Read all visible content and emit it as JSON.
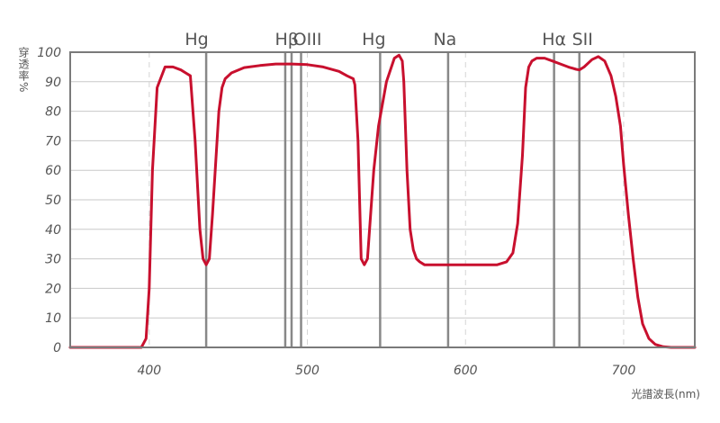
{
  "chart_data": {
    "type": "line",
    "ylabel": "穿透率%",
    "xlabel": "光譜波長(nm)",
    "xlim": [
      350,
      745
    ],
    "ylim": [
      0,
      100
    ],
    "y_ticks": [
      0,
      10,
      20,
      30,
      40,
      50,
      60,
      70,
      80,
      90,
      100
    ],
    "x_ticks": [
      400,
      500,
      600,
      700
    ],
    "grid": true,
    "colors": {
      "curve": "#c8102e",
      "grid": "#c8c8c8",
      "frame": "#7a7a7a",
      "spectral_line": "#888888",
      "text": "#555555"
    },
    "spectral_lines": [
      {
        "label": "Hg",
        "wavelength": 436,
        "text_wavelength": 430
      },
      {
        "label": "Hβ",
        "wavelength": 486,
        "text_wavelength": 487
      },
      {
        "label": "",
        "wavelength": 490,
        "text_wavelength": null
      },
      {
        "label": "OIII",
        "wavelength": 496,
        "text_wavelength": 500
      },
      {
        "label": "Hg",
        "wavelength": 546,
        "text_wavelength": 542
      },
      {
        "label": "Na",
        "wavelength": 589,
        "text_wavelength": 587
      },
      {
        "label": "Hα",
        "wavelength": 656,
        "text_wavelength": 656
      },
      {
        "label": "SII",
        "wavelength": 672,
        "text_wavelength": 674
      }
    ],
    "series": [
      {
        "x": [
          350,
          395,
          398,
          400,
          402,
          405,
          410,
          415,
          420,
          423,
          426,
          429,
          432,
          434,
          436,
          438,
          440,
          444,
          446,
          448,
          452,
          460,
          470,
          480,
          490,
          500,
          510,
          520,
          525,
          529,
          530,
          532,
          534,
          536,
          538,
          540,
          542,
          545,
          550,
          555,
          558,
          560,
          561,
          563,
          565,
          567,
          569,
          571,
          574,
          578,
          582,
          600,
          620,
          626,
          630,
          633,
          636,
          638,
          640,
          642,
          645,
          650,
          655,
          660,
          665,
          670,
          672,
          675,
          680,
          684,
          688,
          692,
          695,
          698,
          700,
          703,
          706,
          709,
          712,
          716,
          720,
          725,
          730,
          745
        ],
        "y": [
          0,
          0,
          3,
          20,
          60,
          88,
          95,
          95,
          94,
          93,
          92,
          70,
          40,
          30,
          28,
          30,
          45,
          80,
          88,
          91,
          93,
          94.8,
          95.5,
          96,
          96,
          95.8,
          95,
          93.5,
          92,
          91,
          89,
          70,
          30,
          28,
          30,
          45,
          60,
          75,
          90,
          98,
          99,
          97,
          90,
          60,
          40,
          33,
          30,
          29,
          28,
          28,
          28,
          28,
          28,
          29,
          32,
          42,
          65,
          88,
          95,
          97,
          98,
          98,
          97,
          96,
          95,
          94.2,
          94,
          95,
          97.5,
          98.5,
          97,
          92,
          85,
          75,
          62,
          45,
          30,
          17,
          8,
          3,
          1,
          0.2,
          0,
          0
        ]
      }
    ]
  }
}
